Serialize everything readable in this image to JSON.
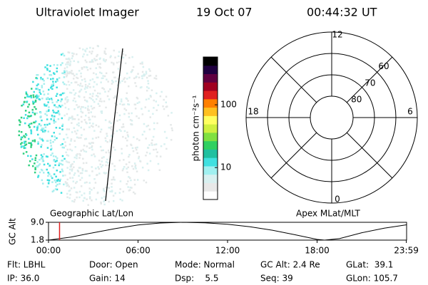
{
  "header": {
    "instrument": "Ultraviolet Imager",
    "date": "19 Oct 07",
    "time": "00:44:32 UT"
  },
  "colorbar": {
    "label": "photon cm⁻²s⁻¹",
    "log": true,
    "lim": [
      3.1,
      577
    ],
    "ticks": [
      10,
      100
    ],
    "colors": [
      "#ffffff",
      "#e8e8e8",
      "#d8f0f0",
      "#a0f0f0",
      "#40e0e0",
      "#20c0a0",
      "#30d060",
      "#80e040",
      "#d0f040",
      "#ffff60",
      "#ffc020",
      "#ff8000",
      "#e02020",
      "#a00020",
      "#600040",
      "#200040",
      "#000000"
    ]
  },
  "polar": {
    "rlim": [
      50,
      90
    ],
    "rings": [
      60,
      70,
      80
    ],
    "hours": [
      12,
      6,
      0,
      18
    ]
  },
  "altitude_plot": {
    "ylabel": "GC Alt",
    "left_label": "Geographic Lat/Lon",
    "right_label": "Apex MLat/MLT",
    "xlim": [
      0,
      24
    ],
    "ylim": [
      1.8,
      9.0
    ],
    "yticks": [
      {
        "value": 9.0,
        "label": "9.0"
      },
      1.8
    ],
    "xticks": [
      {
        "value": 0,
        "label": "00:00"
      },
      {
        "value": 6,
        "label": "06:00"
      },
      {
        "value": 12,
        "label": "12:00"
      },
      {
        "value": 18,
        "label": "18:00"
      },
      {
        "value": 23.98,
        "label": "23:59"
      }
    ],
    "x": [
      0,
      1.5,
      3,
      4.5,
      6,
      7.5,
      9,
      10.5,
      12,
      13.5,
      15,
      16.5,
      18,
      18.5,
      19.5,
      21,
      22.5,
      24
    ],
    "values": [
      1.8,
      3.0,
      4.8,
      6.5,
      7.9,
      8.7,
      9.0,
      8.8,
      8.2,
      7.2,
      5.8,
      4.0,
      2.1,
      1.8,
      2.4,
      4.8,
      6.6,
      8.0
    ],
    "current_time": 0.74,
    "marker_color": "#e02020"
  },
  "info": [
    [
      "Flt: LBHL",
      "Door: Open",
      "Mode: Normal",
      "GC Alt: 2.4 Re",
      "GLat:  39.1"
    ],
    [
      "IP: 36.0",
      "Gain: 14",
      "Dsp:    5.5",
      "Seq: 39",
      "GLon: 105.7"
    ]
  ]
}
